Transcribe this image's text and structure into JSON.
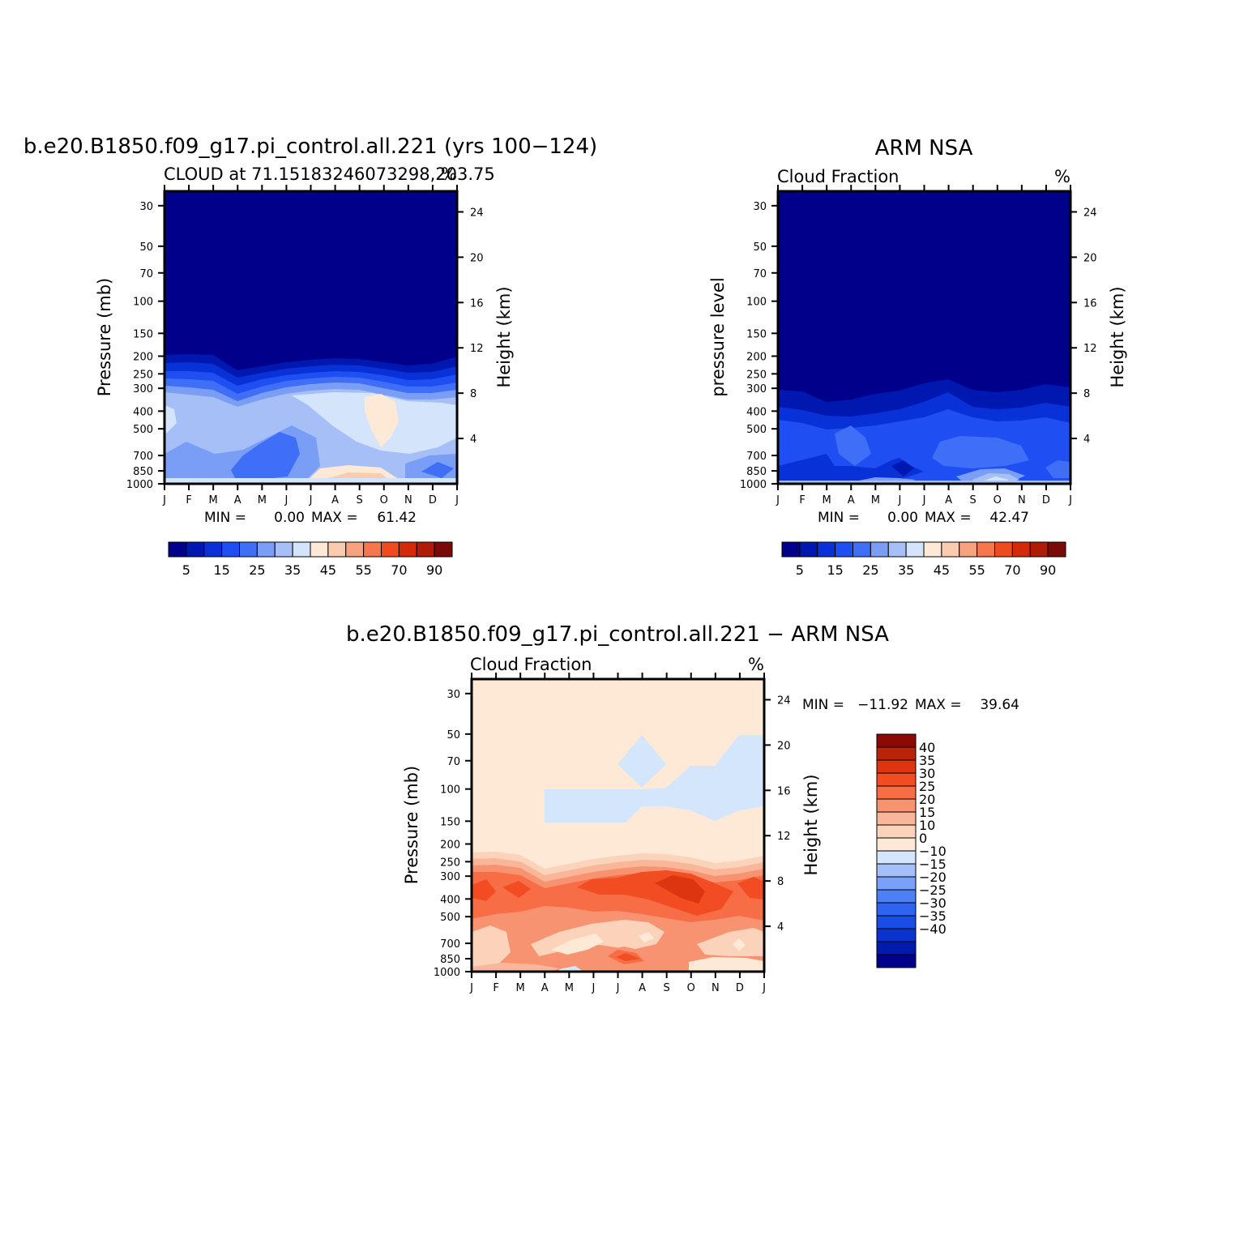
{
  "colors": {
    "abs_scale": [
      "#00008b",
      "#0018b0",
      "#0831d8",
      "#1f4ff3",
      "#3f6ff6",
      "#7a9ef5",
      "#a7bff7",
      "#d3e4fb",
      "#fde9d6",
      "#fbcbb0",
      "#f7a27f",
      "#f6764e",
      "#ef4b20",
      "#d52a0a",
      "#b01b08",
      "#7a0a06"
    ],
    "diff_scale": [
      "#00008b",
      "#001aab",
      "#0a33cd",
      "#1a4ce7",
      "#3063f0",
      "#4d7ff5",
      "#7aa0f7",
      "#a5c0f9",
      "#d4e6fc",
      "#fde9d6",
      "#fbd3bb",
      "#f9b699",
      "#f89372",
      "#f76d45",
      "#f24c22",
      "#dc3510",
      "#b9230a",
      "#8b0a06"
    ]
  },
  "chart_data": [
    {
      "type": "heatmap",
      "id": "model",
      "title": "b.e20.B1850.f09_g17.pi_control.all.221 (yrs 100−124)",
      "subtitle_left": "CLOUD at 71.15183246073298,203.75",
      "subtitle_right": "%",
      "ylabel": "Pressure (mb)",
      "ylabel_right": "Height (km)",
      "x_ticks": [
        "J",
        "F",
        "M",
        "A",
        "M",
        "J",
        "J",
        "A",
        "S",
        "O",
        "N",
        "D",
        "J"
      ],
      "y_ticks": [
        "30",
        "50",
        "70",
        "100",
        "150",
        "200",
        "250",
        "300",
        "400",
        "500",
        "700",
        "850",
        "1000"
      ],
      "y_ticks_right": [
        "24",
        "20",
        "16",
        "12",
        "8",
        "4"
      ],
      "ylim": [
        1000,
        25
      ],
      "min_text": "MIN =",
      "min_value": "0.00",
      "max_text": "MAX =",
      "max_value": "61.42",
      "colorbar_labels": [
        "5",
        "15",
        "25",
        "35",
        "45",
        "55",
        "70",
        "90"
      ]
    },
    {
      "type": "heatmap",
      "id": "obs",
      "title": "ARM NSA",
      "subtitle_left": "Cloud Fraction",
      "subtitle_right": "%",
      "ylabel": "pressure level",
      "ylabel_right": "Height (km)",
      "x_ticks": [
        "J",
        "F",
        "M",
        "A",
        "M",
        "J",
        "J",
        "A",
        "S",
        "O",
        "N",
        "D",
        "J"
      ],
      "y_ticks": [
        "30",
        "50",
        "70",
        "100",
        "150",
        "200",
        "250",
        "300",
        "400",
        "500",
        "700",
        "850",
        "1000"
      ],
      "y_ticks_right": [
        "24",
        "20",
        "16",
        "12",
        "8",
        "4"
      ],
      "ylim": [
        1000,
        25
      ],
      "min_text": "MIN =",
      "min_value": "0.00",
      "max_text": "MAX =",
      "max_value": "42.47",
      "colorbar_labels": [
        "5",
        "15",
        "25",
        "35",
        "45",
        "55",
        "70",
        "90"
      ]
    },
    {
      "type": "heatmap",
      "id": "diff",
      "title": "b.e20.B1850.f09_g17.pi_control.all.221 − ARM NSA",
      "subtitle_left": "Cloud Fraction",
      "subtitle_right": "%",
      "ylabel": "Pressure (mb)",
      "ylabel_right": "Height (km)",
      "x_ticks": [
        "J",
        "F",
        "M",
        "A",
        "M",
        "J",
        "J",
        "A",
        "S",
        "O",
        "N",
        "D",
        "J"
      ],
      "y_ticks": [
        "30",
        "50",
        "70",
        "100",
        "150",
        "200",
        "250",
        "300",
        "400",
        "500",
        "700",
        "850",
        "1000"
      ],
      "y_ticks_right": [
        "24",
        "20",
        "16",
        "12",
        "8",
        "4"
      ],
      "ylim": [
        1000,
        25
      ],
      "min_text": "MIN =",
      "min_value": "−11.92",
      "max_text": "MAX =",
      "max_value": "39.64",
      "colorbar_labels": [
        "40",
        "35",
        "30",
        "25",
        "20",
        "15",
        "10",
        "0",
        "−10",
        "−15",
        "−20",
        "−25",
        "−30",
        "−35",
        "−40"
      ]
    }
  ]
}
